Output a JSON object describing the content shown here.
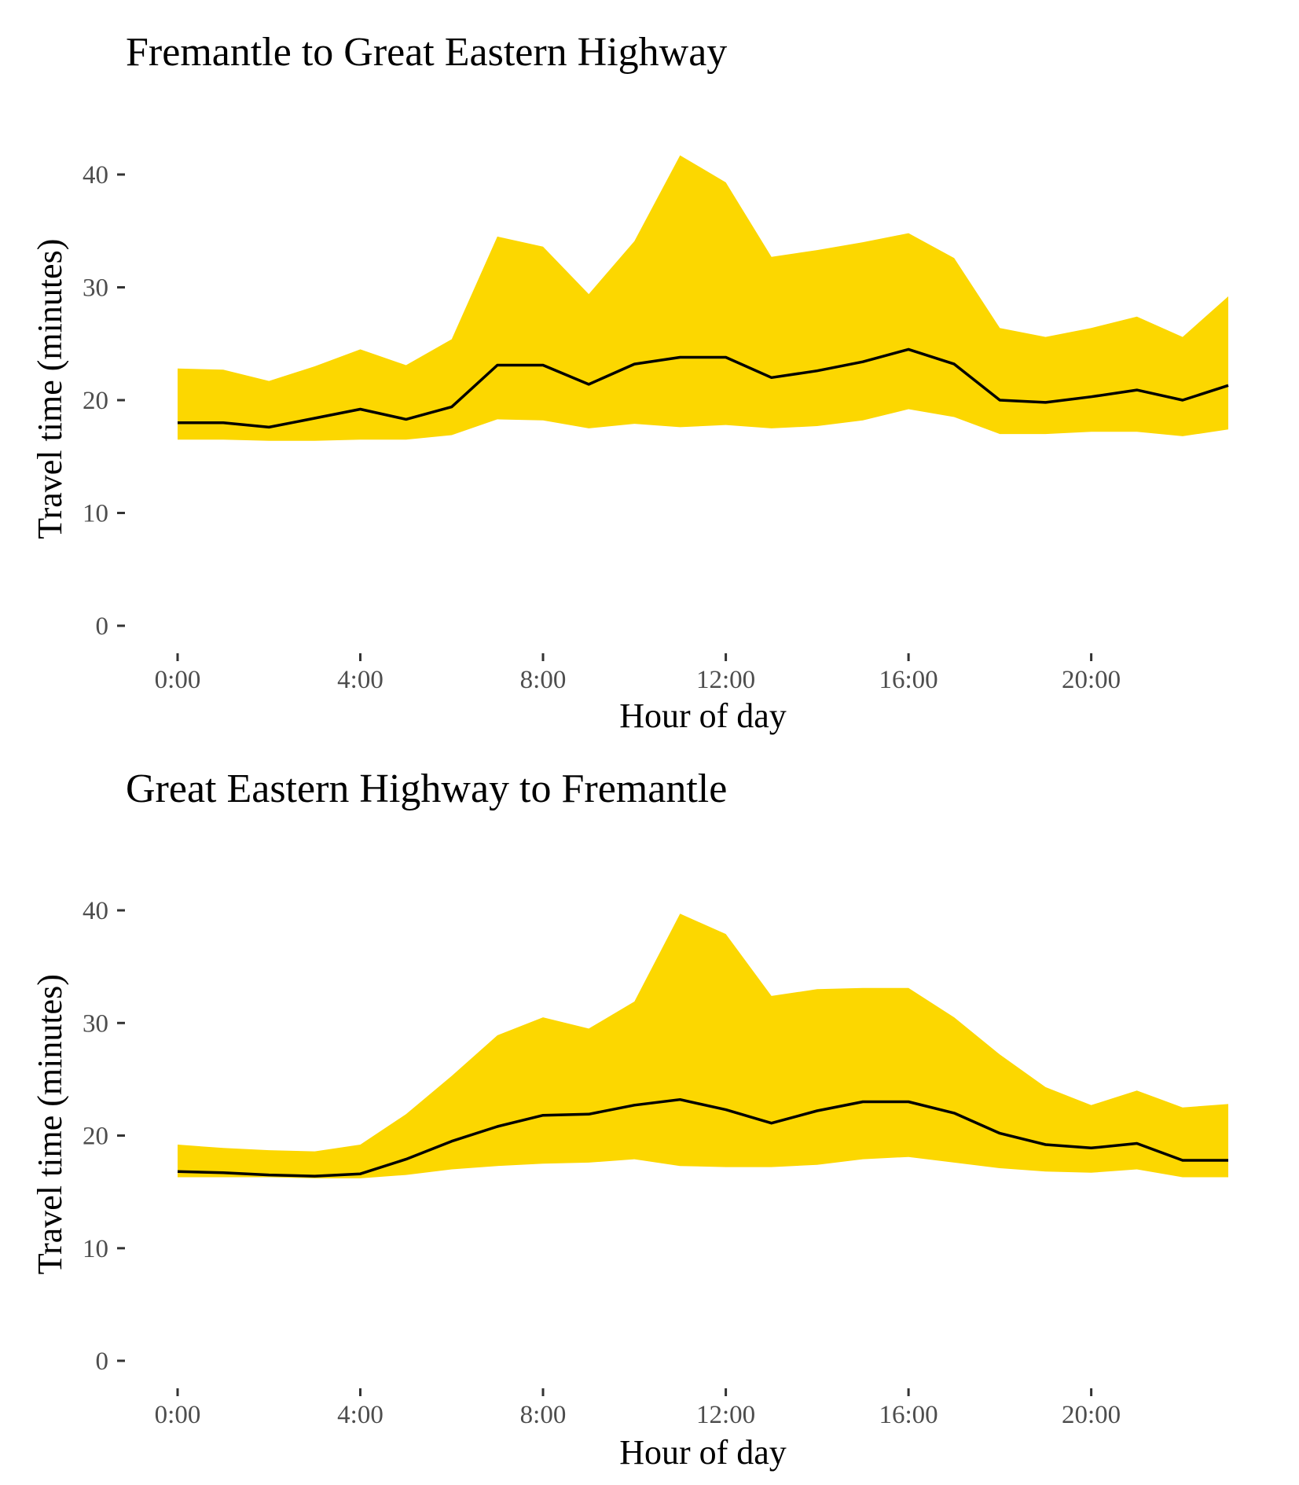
{
  "colors": {
    "band": "#FCD700",
    "line": "#000000",
    "tick_label": "#4d4d4d"
  },
  "chart_data": [
    {
      "type": "area",
      "title": "Fremantle to Great Eastern Highway",
      "xlabel": "Hour of day",
      "ylabel": "Travel time (minutes)",
      "xlim": [
        0,
        23
      ],
      "ylim": [
        0,
        42
      ],
      "x_ticks": [
        0,
        4,
        8,
        12,
        16,
        20
      ],
      "x_tick_labels": [
        "0:00",
        "4:00",
        "8:00",
        "12:00",
        "16:00",
        "20:00"
      ],
      "y_ticks": [
        0,
        10,
        20,
        30,
        40
      ],
      "y_tick_labels": [
        "0",
        "10",
        "20",
        "30",
        "40"
      ],
      "grid": false,
      "x": [
        0,
        1,
        2,
        3,
        4,
        5,
        6,
        7,
        8,
        9,
        10,
        11,
        12,
        13,
        14,
        15,
        16,
        17,
        18,
        19,
        20,
        21,
        22,
        23
      ],
      "upper": [
        22.8,
        22.7,
        21.7,
        23.0,
        24.5,
        23.1,
        25.4,
        34.5,
        33.6,
        29.4,
        34.1,
        41.7,
        39.3,
        32.7,
        33.3,
        34.0,
        34.8,
        32.6,
        26.4,
        25.6,
        26.4,
        27.4,
        25.6,
        29.2
      ],
      "median": [
        18.0,
        18.0,
        17.6,
        18.4,
        19.2,
        18.3,
        19.4,
        23.1,
        23.1,
        21.4,
        23.2,
        23.8,
        23.8,
        22.0,
        22.6,
        23.4,
        24.5,
        23.2,
        20.0,
        19.8,
        20.3,
        20.9,
        20.0,
        21.3
      ],
      "lower": [
        16.5,
        16.5,
        16.4,
        16.4,
        16.5,
        16.5,
        16.9,
        18.3,
        18.2,
        17.5,
        17.9,
        17.6,
        17.8,
        17.5,
        17.7,
        18.2,
        19.2,
        18.5,
        17.0,
        17.0,
        17.2,
        17.2,
        16.8,
        17.4
      ]
    },
    {
      "type": "area",
      "title": "Great Eastern Highway to Fremantle",
      "xlabel": "Hour of day",
      "ylabel": "Travel time (minutes)",
      "xlim": [
        0,
        23
      ],
      "ylim": [
        0,
        42
      ],
      "x_ticks": [
        0,
        4,
        8,
        12,
        16,
        20
      ],
      "x_tick_labels": [
        "0:00",
        "4:00",
        "8:00",
        "12:00",
        "16:00",
        "20:00"
      ],
      "y_ticks": [
        0,
        10,
        20,
        30,
        40
      ],
      "y_tick_labels": [
        "0",
        "10",
        "20",
        "30",
        "40"
      ],
      "grid": false,
      "x": [
        0,
        1,
        2,
        3,
        4,
        5,
        6,
        7,
        8,
        9,
        10,
        11,
        12,
        13,
        14,
        15,
        16,
        17,
        18,
        19,
        20,
        21,
        22,
        23
      ],
      "upper": [
        19.2,
        18.9,
        18.7,
        18.6,
        19.2,
        21.9,
        25.3,
        28.9,
        30.5,
        29.5,
        31.9,
        39.7,
        37.9,
        32.4,
        33.0,
        33.1,
        33.1,
        30.5,
        27.2,
        24.3,
        22.7,
        24.0,
        22.5,
        22.8
      ],
      "median": [
        16.8,
        16.7,
        16.5,
        16.4,
        16.6,
        17.9,
        19.5,
        20.8,
        21.8,
        21.9,
        22.7,
        23.2,
        22.3,
        21.1,
        22.2,
        23.0,
        23.0,
        22.0,
        20.2,
        19.2,
        18.9,
        19.3,
        17.8,
        17.8
      ],
      "lower": [
        16.3,
        16.3,
        16.3,
        16.2,
        16.2,
        16.5,
        17.0,
        17.3,
        17.5,
        17.6,
        17.9,
        17.3,
        17.2,
        17.2,
        17.4,
        17.9,
        18.1,
        17.6,
        17.1,
        16.8,
        16.7,
        17.0,
        16.3,
        16.3
      ]
    }
  ]
}
